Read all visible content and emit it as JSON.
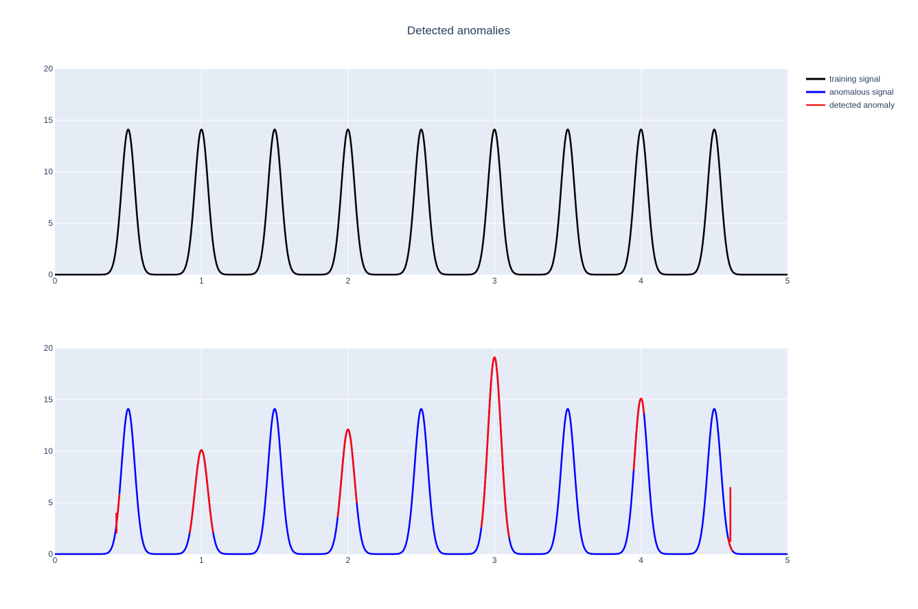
{
  "chart_data": {
    "type": "line",
    "title": "Detected anomalies",
    "colors": {
      "plot_background": "#e5ecf6",
      "grid": "#ffffff",
      "training": "#000000",
      "anomalous": "#0000ff",
      "detected": "#ff0000"
    },
    "legend": {
      "placement": "top-right",
      "entries": [
        {
          "name": "training signal",
          "color": "#000000"
        },
        {
          "name": "anomalous signal",
          "color": "#0000ff"
        },
        {
          "name": "detected anomaly",
          "color": "#ff0000"
        }
      ]
    },
    "subplots": [
      {
        "xlim": [
          0,
          5
        ],
        "ylim": [
          0,
          20
        ],
        "grid": true,
        "x_ticks": [
          0,
          1,
          2,
          3,
          4,
          5
        ],
        "y_ticks": [
          0,
          5,
          10,
          15,
          20
        ],
        "series": [
          {
            "name": "training signal",
            "color": "#000000",
            "peaks": [
              {
                "x": 0.5,
                "y": 14.1
              },
              {
                "x": 1.0,
                "y": 14.1
              },
              {
                "x": 1.5,
                "y": 14.1
              },
              {
                "x": 2.0,
                "y": 14.1
              },
              {
                "x": 2.5,
                "y": 14.1
              },
              {
                "x": 3.0,
                "y": 14.1
              },
              {
                "x": 3.5,
                "y": 14.1
              },
              {
                "x": 4.0,
                "y": 14.1
              },
              {
                "x": 4.5,
                "y": 14.1
              }
            ]
          }
        ]
      },
      {
        "xlim": [
          0,
          5
        ],
        "ylim": [
          0,
          20
        ],
        "grid": true,
        "x_ticks": [
          0,
          1,
          2,
          3,
          4,
          5
        ],
        "y_ticks": [
          0,
          5,
          10,
          15,
          20
        ],
        "series": [
          {
            "name": "anomalous signal",
            "color": "#0000ff",
            "peaks": [
              {
                "x": 0.5,
                "y": 14.1
              },
              {
                "x": 1.0,
                "y": 10.1
              },
              {
                "x": 1.5,
                "y": 14.1
              },
              {
                "x": 2.0,
                "y": 12.1
              },
              {
                "x": 2.5,
                "y": 14.1
              },
              {
                "x": 3.0,
                "y": 19.1
              },
              {
                "x": 3.5,
                "y": 14.1
              },
              {
                "x": 4.0,
                "y": 15.1
              },
              {
                "x": 4.5,
                "y": 14.1
              }
            ],
            "spikes": [
              {
                "x": 0.42,
                "from": 2.0,
                "to": 4.0
              },
              {
                "x": 4.61,
                "from": 1.2,
                "to": 6.5
              }
            ]
          },
          {
            "name": "detected anomaly",
            "color": "#ff0000",
            "segments": [
              {
                "x_start": 0.42,
                "x_end": 0.44
              },
              {
                "x_start": 0.92,
                "x_end": 1.08
              },
              {
                "x_start": 1.93,
                "x_end": 2.06
              },
              {
                "x_start": 2.91,
                "x_end": 3.1
              },
              {
                "x_start": 3.95,
                "x_end": 4.02
              },
              {
                "x_start": 4.595,
                "x_end": 4.625
              }
            ]
          }
        ]
      }
    ]
  }
}
